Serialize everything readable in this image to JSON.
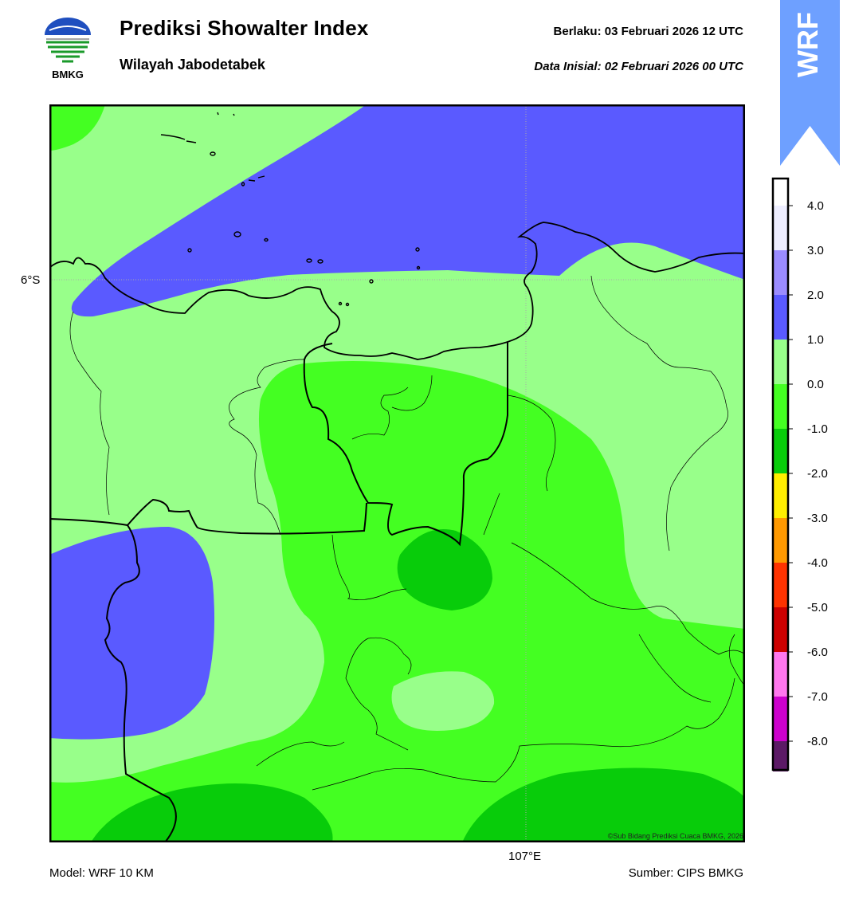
{
  "logo": {
    "name": "bmkg-logo",
    "text": "BMKG"
  },
  "header": {
    "title": "Prediksi Showalter Index",
    "subtitle": "Wilayah Jabodetabek",
    "valid": "Berlaku:  03 Februari 2026 12 UTC",
    "initial": "Data Inisial:  02 Februari 2026 00 UTC"
  },
  "badge": {
    "text": "WRF",
    "color": "#6ea0ff"
  },
  "map": {
    "lat_label": "6°S",
    "lon_label": "107°E",
    "copyright": "©Sub Bidang Prediksi Cuaca BMKG, 2026"
  },
  "colorbar": {
    "ticks": [
      "4.0",
      "3.0",
      "2.0",
      "1.0",
      "0.0",
      "-1.0",
      "-2.0",
      "-3.0",
      "-4.0",
      "-5.0",
      "-6.0",
      "-7.0",
      "-8.0"
    ],
    "colors": [
      "#eeeeff",
      "#9b8cff",
      "#5a5aff",
      "#98ff8a",
      "#44ff22",
      "#08cc0a",
      "#ffee00",
      "#ff9900",
      "#ff3300",
      "#cc0000",
      "#ff77ee",
      "#cc00cc",
      "#5c1a66"
    ]
  },
  "footer": {
    "model": "Model: WRF 10 KM",
    "source": "Sumber: CIPS BMKG"
  }
}
